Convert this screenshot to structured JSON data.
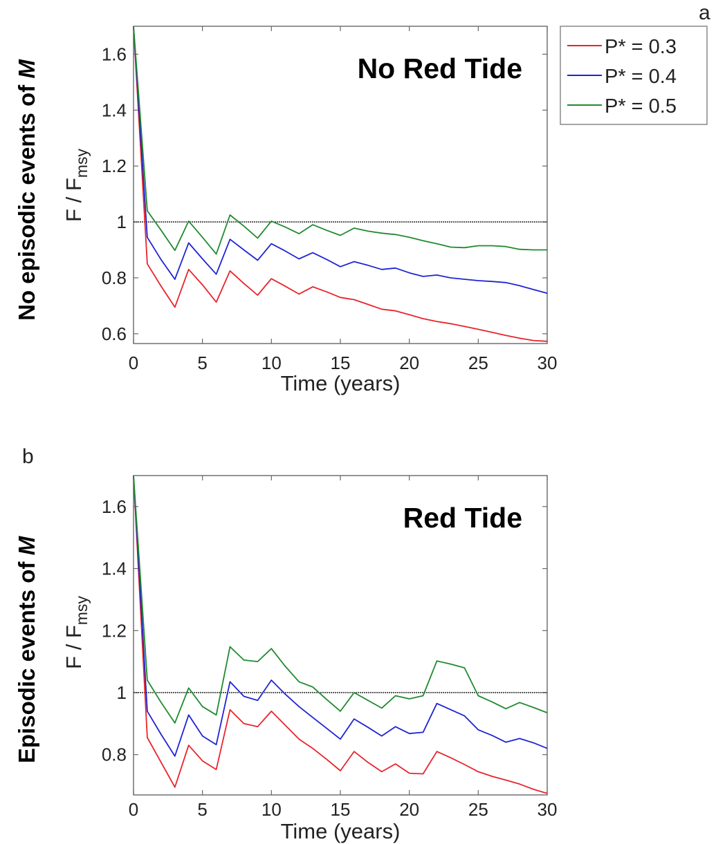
{
  "chart_data": [
    {
      "type": "line",
      "panel_letter": "a",
      "row_label": "No episodic events of ",
      "row_label_italic": "M",
      "annotation": "No Red Tide",
      "ylabel_main": "F / F",
      "ylabel_sub": "msy",
      "xlabel": "Time (years)",
      "xlim": [
        0,
        30
      ],
      "ylim": [
        0.565,
        1.7
      ],
      "xticks": [
        0,
        5,
        10,
        15,
        20,
        25,
        30
      ],
      "yticks": [
        0.6,
        0.8,
        1,
        1.2,
        1.4,
        1.6
      ],
      "ytick_labels": [
        "0.6",
        "0.8",
        "1",
        "1.2",
        "1.4",
        "1.6"
      ],
      "reference_line": 1,
      "x": [
        0,
        1,
        2,
        3,
        4,
        5,
        6,
        7,
        8,
        9,
        10,
        11,
        12,
        13,
        14,
        15,
        16,
        17,
        18,
        19,
        20,
        21,
        22,
        23,
        24,
        25,
        26,
        27,
        28,
        29,
        30
      ],
      "series": [
        {
          "name": "P* = 0.3",
          "color": "#e8232a",
          "values": [
            1.7,
            0.85,
            0.77,
            0.695,
            0.83,
            0.775,
            0.713,
            0.825,
            0.78,
            0.738,
            0.797,
            0.77,
            0.742,
            0.768,
            0.75,
            0.73,
            0.722,
            0.705,
            0.688,
            0.682,
            0.668,
            0.654,
            0.644,
            0.636,
            0.626,
            0.616,
            0.605,
            0.594,
            0.584,
            0.576,
            0.573
          ]
        },
        {
          "name": "P* = 0.4",
          "color": "#1e23d4",
          "values": [
            1.7,
            0.945,
            0.865,
            0.795,
            0.925,
            0.868,
            0.813,
            0.938,
            0.9,
            0.863,
            0.922,
            0.896,
            0.868,
            0.89,
            0.866,
            0.84,
            0.858,
            0.845,
            0.83,
            0.835,
            0.818,
            0.805,
            0.81,
            0.8,
            0.795,
            0.79,
            0.787,
            0.783,
            0.772,
            0.758,
            0.745
          ]
        },
        {
          "name": "P* = 0.5",
          "color": "#1e8a2e",
          "values": [
            1.7,
            1.04,
            0.97,
            0.898,
            1.003,
            0.945,
            0.885,
            1.025,
            0.985,
            0.942,
            1.003,
            0.982,
            0.958,
            0.99,
            0.97,
            0.952,
            0.978,
            0.967,
            0.96,
            0.955,
            0.945,
            0.933,
            0.922,
            0.91,
            0.908,
            0.915,
            0.915,
            0.912,
            0.902,
            0.9,
            0.9
          ]
        }
      ],
      "legend": {
        "placement": "top-right, outside plot",
        "entries": [
          "P* = 0.3",
          "P* = 0.4",
          "P* = 0.5"
        ]
      }
    },
    {
      "type": "line",
      "panel_letter": "b",
      "row_label": "Episodic events of ",
      "row_label_italic": "M",
      "annotation": "Red Tide",
      "ylabel_main": "F / F",
      "ylabel_sub": "msy",
      "xlabel": "Time (years)",
      "xlim": [
        0,
        30
      ],
      "ylim": [
        0.67,
        1.7
      ],
      "xticks": [
        0,
        5,
        10,
        15,
        20,
        25,
        30
      ],
      "yticks": [
        0.8,
        1,
        1.2,
        1.4,
        1.6
      ],
      "ytick_labels": [
        "0.8",
        "1",
        "1.2",
        "1.4",
        "1.6"
      ],
      "reference_line": 1,
      "x": [
        0,
        1,
        2,
        3,
        4,
        5,
        6,
        7,
        8,
        9,
        10,
        11,
        12,
        13,
        14,
        15,
        16,
        17,
        18,
        19,
        20,
        21,
        22,
        23,
        24,
        25,
        26,
        27,
        28,
        29,
        30
      ],
      "series": [
        {
          "name": "P* = 0.3",
          "color": "#e8232a",
          "values": [
            1.7,
            0.855,
            0.775,
            0.695,
            0.83,
            0.78,
            0.752,
            0.945,
            0.9,
            0.89,
            0.94,
            0.895,
            0.85,
            0.82,
            0.785,
            0.748,
            0.81,
            0.775,
            0.745,
            0.77,
            0.74,
            0.738,
            0.81,
            0.79,
            0.768,
            0.745,
            0.73,
            0.718,
            0.705,
            0.688,
            0.675
          ]
        },
        {
          "name": "P* = 0.4",
          "color": "#1e23d4",
          "values": [
            1.7,
            0.94,
            0.865,
            0.795,
            0.928,
            0.86,
            0.832,
            1.035,
            0.988,
            0.975,
            1.04,
            0.995,
            0.955,
            0.92,
            0.885,
            0.85,
            0.915,
            0.888,
            0.86,
            0.89,
            0.868,
            0.872,
            0.965,
            0.945,
            0.925,
            0.88,
            0.862,
            0.84,
            0.852,
            0.838,
            0.82
          ]
        },
        {
          "name": "P* = 0.5",
          "color": "#1e8a2e",
          "values": [
            1.7,
            1.04,
            0.968,
            0.902,
            1.015,
            0.955,
            0.928,
            1.148,
            1.105,
            1.1,
            1.142,
            1.085,
            1.035,
            1.018,
            0.978,
            0.94,
            1.0,
            0.975,
            0.95,
            0.99,
            0.98,
            0.99,
            1.102,
            1.092,
            1.08,
            0.99,
            0.97,
            0.948,
            0.968,
            0.952,
            0.935
          ]
        }
      ]
    }
  ]
}
